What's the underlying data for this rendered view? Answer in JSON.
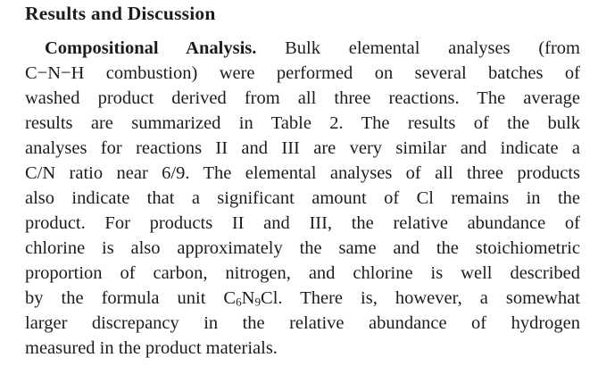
{
  "page": {
    "background": "#ffffff",
    "text_color": "#1c1c1c"
  },
  "section": {
    "heading": "Results and Discussion"
  },
  "paragraph": {
    "lead_in": "Compositional Analysis.",
    "line1_rest": " Bulk elemental analyses (from",
    "line2": "C−N−H combustion) were performed on several batches of",
    "line3": "washed product derived from all three reactions. The average",
    "line4": "results are summarized in Table 2. The results of the bulk",
    "line5": "analyses for reactions II and III are very similar and indicate a",
    "line6": "C/N ratio near 6/9. The elemental analyses of all three products",
    "line7": "also indicate that a significant amount of Cl remains in the",
    "line8": "product. For products II and III, the relative abundance of",
    "line9": "chlorine is also approximately the same and the stoichiometric",
    "line10": "proportion of carbon, nitrogen, and chlorine is well described",
    "line11": {
      "pre": "by the formula unit C",
      "sub1": "6",
      "mid": "N",
      "sub2": "9",
      "post": "Cl. There is, however, a somewhat"
    },
    "line12": "larger discrepancy in the relative abundance of hydrogen",
    "line13": "measured in the product materials."
  }
}
